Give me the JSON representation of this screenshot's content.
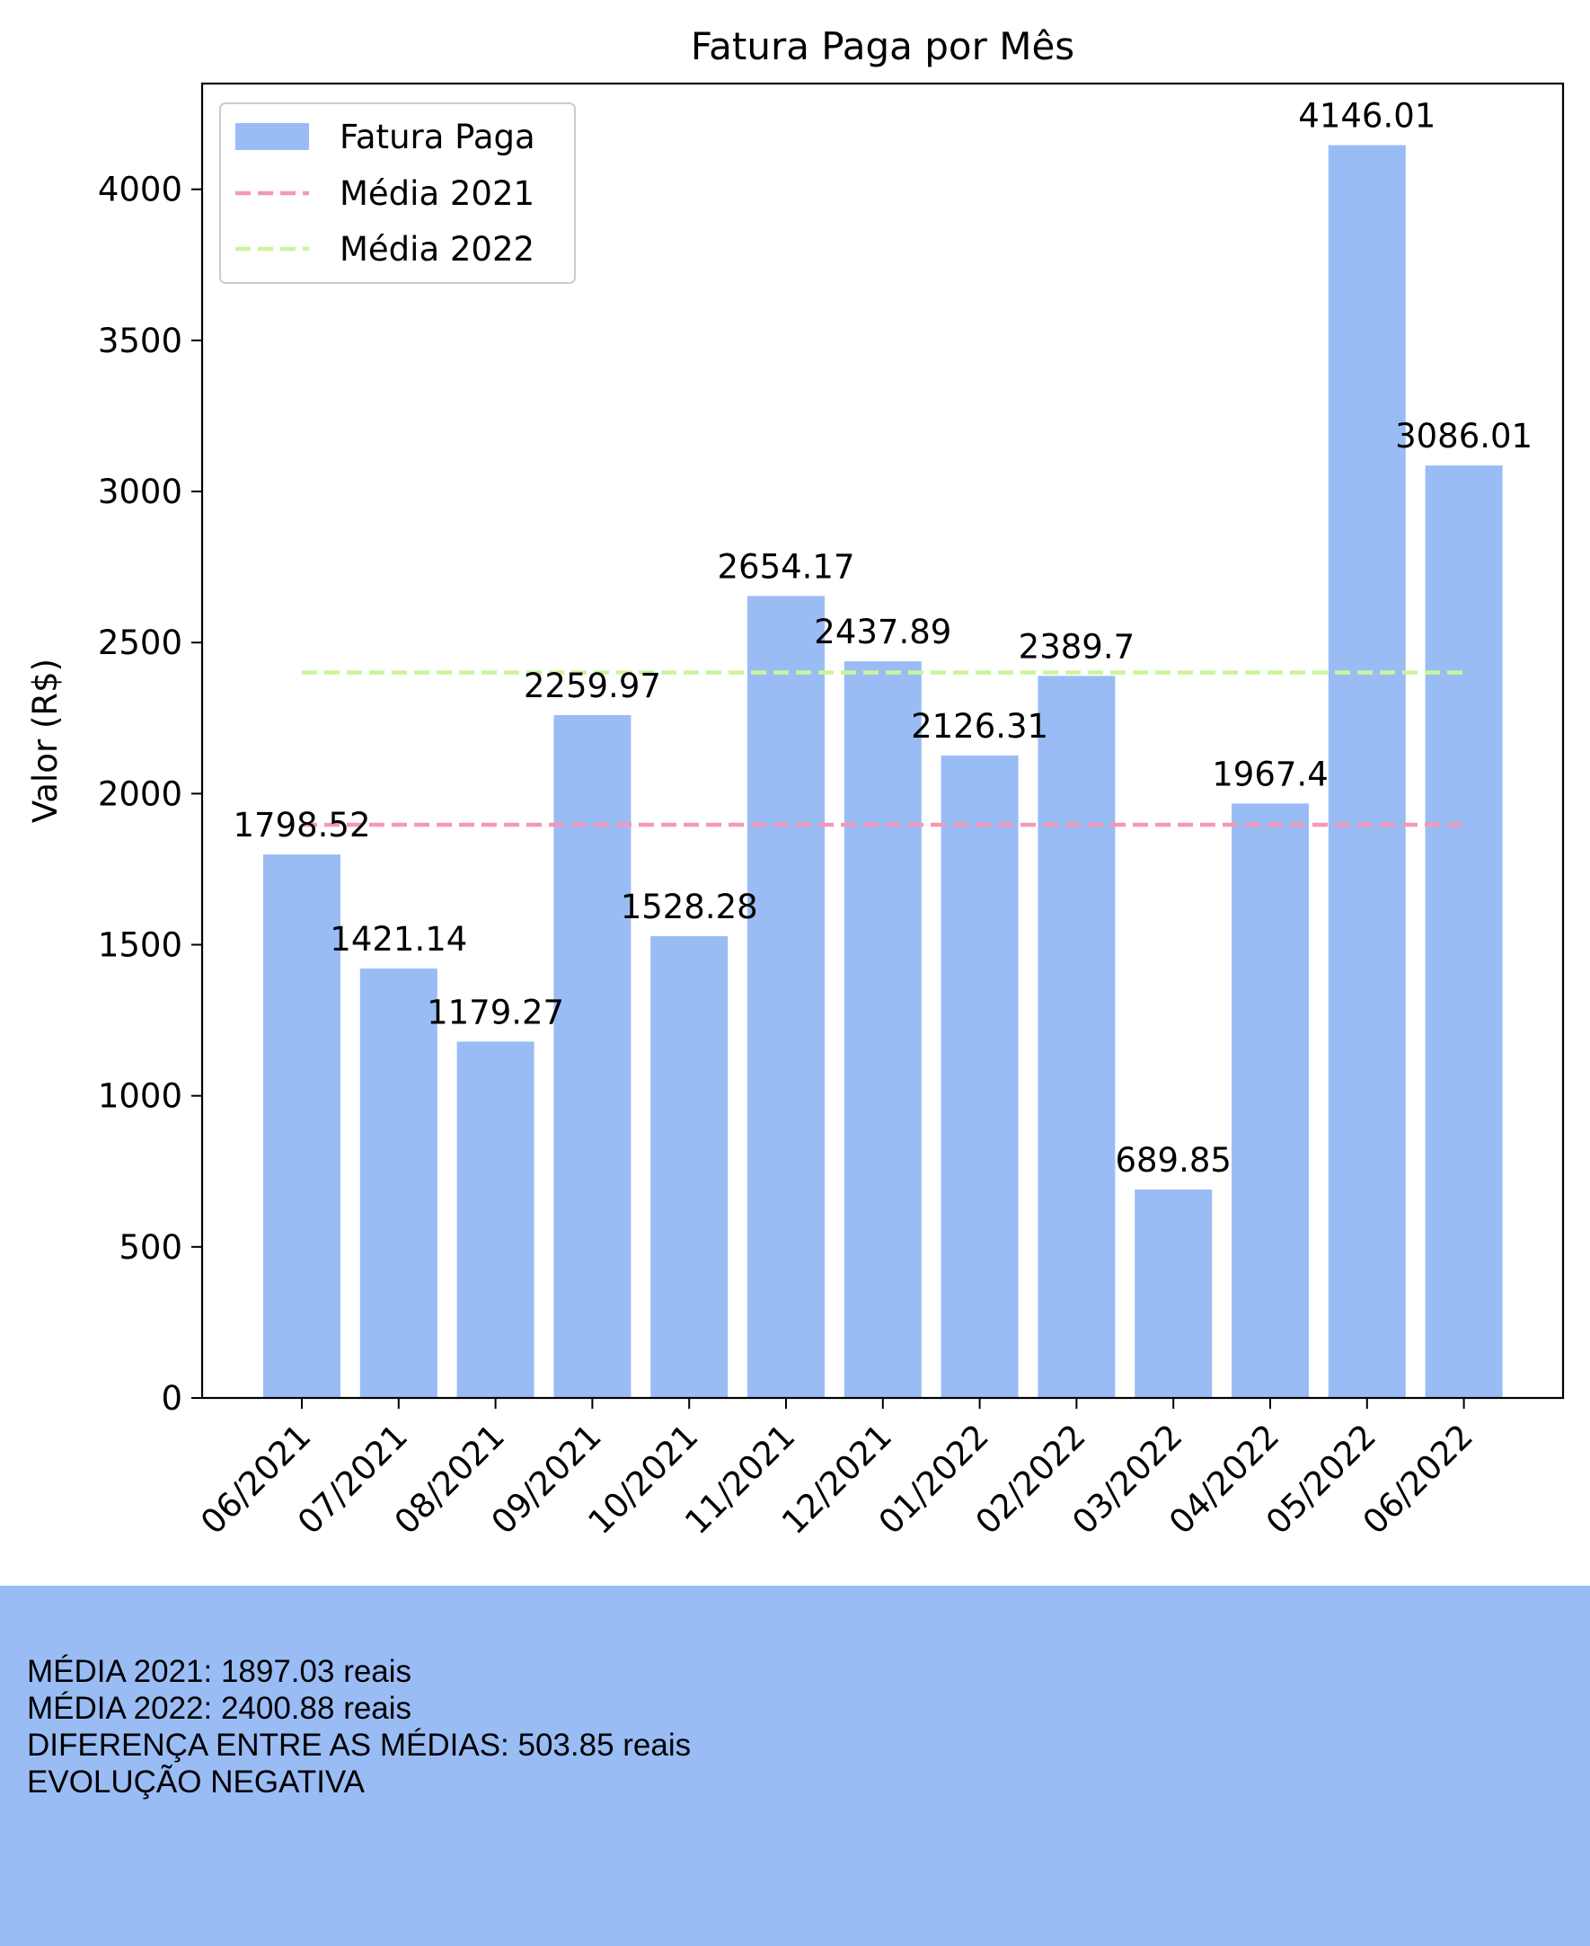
{
  "chart_data": {
    "type": "bar",
    "title": "Fatura Paga por Mês",
    "xlabel": "",
    "ylabel": "Valor (R$)",
    "ylim": [
      0,
      4350
    ],
    "yticks": [
      0,
      500,
      1000,
      1500,
      2000,
      2500,
      3000,
      3500,
      4000
    ],
    "categories": [
      "06/2021",
      "07/2021",
      "08/2021",
      "09/2021",
      "10/2021",
      "11/2021",
      "12/2021",
      "01/2022",
      "02/2022",
      "03/2022",
      "04/2022",
      "05/2022",
      "06/2022"
    ],
    "values": [
      1798.52,
      1421.14,
      1179.27,
      2259.97,
      1528.28,
      2654.17,
      2437.89,
      2126.31,
      2389.7,
      689.85,
      1967.4,
      4146.01,
      3086.01
    ],
    "value_labels": [
      "1798.52",
      "1421.14",
      "1179.27",
      "2259.97",
      "1528.28",
      "2654.17",
      "2437.89",
      "2126.31",
      "2389.7",
      "689.85",
      "1967.4",
      "4146.01",
      "3086.01"
    ],
    "bar_series_name": "Fatura Paga",
    "bar_color": "#9abcf5",
    "reference_lines": [
      {
        "name": "Média 2021",
        "value": 1897.03,
        "color": "#f598b8",
        "style": "dashed"
      },
      {
        "name": "Média 2022",
        "value": 2400.88,
        "color": "#c9f59a",
        "style": "dashed"
      }
    ],
    "legend": {
      "placement": "top-left",
      "entries": [
        "Fatura Paga",
        "Média 2021",
        "Média 2022"
      ]
    },
    "grid": false
  },
  "summary": {
    "lines": [
      "MÉDIA 2021: 1897.03 reais",
      "MÉDIA 2022: 2400.88 reais",
      "DIFERENÇA ENTRE AS MÉDIAS: 503.85 reais",
      "EVOLUÇÃO NEGATIVA"
    ]
  }
}
